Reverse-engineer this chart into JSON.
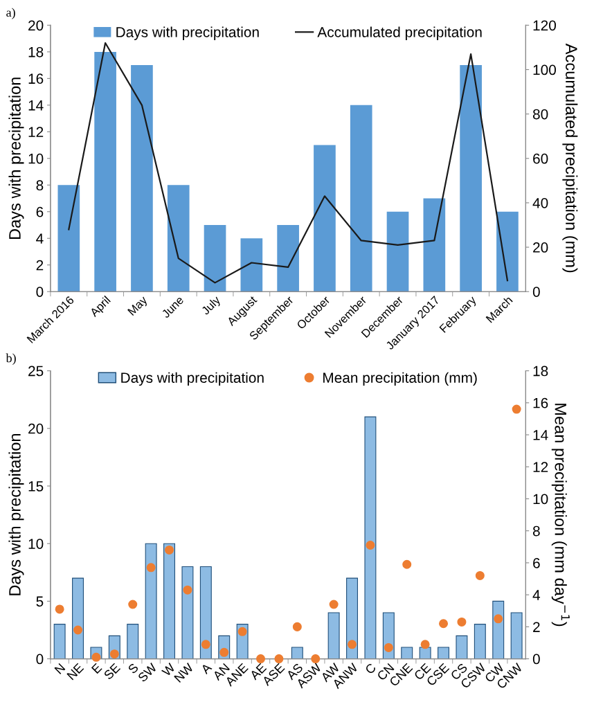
{
  "chart_data": [
    {
      "type": "bar",
      "annotations": [
        "a)"
      ],
      "ylabel": "Days with precipitation",
      "y2label": "Accumulated precipitation (mm)",
      "categories": [
        "March 2016",
        "April",
        "May",
        "June",
        "July",
        "August",
        "September",
        "October",
        "November",
        "December",
        "January 2017",
        "February",
        "March"
      ],
      "series": [
        {
          "name": "Days with precipitation",
          "color": "#5b9bd5",
          "values": [
            8,
            18,
            17,
            8,
            5,
            4,
            5,
            11,
            14,
            6,
            7,
            17,
            6
          ]
        },
        {
          "name": "Accumulated precipitation",
          "type": "line",
          "axis": "y2",
          "color": "#1a1a1a",
          "values": [
            28,
            112,
            84,
            15,
            4,
            13,
            11,
            43,
            23,
            21,
            23,
            107,
            5
          ]
        }
      ],
      "ylim": [
        0,
        20
      ],
      "yticks": [
        0,
        2,
        4,
        6,
        8,
        10,
        12,
        14,
        16,
        18,
        20
      ],
      "y2lim": [
        0,
        120
      ],
      "y2ticks": [
        0,
        20,
        40,
        60,
        80,
        100,
        120
      ],
      "legend": "top",
      "grid": false,
      "marker": "none",
      "line_style": "solid"
    },
    {
      "type": "bar",
      "annotations": [
        "b)"
      ],
      "ylabel": "Days with precipitation",
      "y2label": "Mean precipitation (mm day$^{−1}$)",
      "categories": [
        "N",
        "NE",
        "E",
        "SE",
        "S",
        "SW",
        "W",
        "NW",
        "A",
        "AN",
        "ANE",
        "AE",
        "ASE",
        "AS",
        "ASW",
        "AW",
        "ANW",
        "C",
        "CN",
        "CNE",
        "CE",
        "CSE",
        "CS",
        "CSW",
        "CW",
        "CNW"
      ],
      "series": [
        {
          "name": "Days with precipitation",
          "color": "#8dbbe3",
          "values": [
            3,
            7,
            1,
            2,
            3,
            10,
            10,
            8,
            8,
            2,
            3,
            0,
            0,
            1,
            0,
            4,
            7,
            21,
            4,
            1,
            1,
            1,
            2,
            3,
            5,
            4
          ]
        },
        {
          "name": "Mean precipitation (mm)",
          "type": "scatter",
          "axis": "y2",
          "color": "#ed7d31",
          "values": [
            3.1,
            1.8,
            0.1,
            0.3,
            3.4,
            5.7,
            6.8,
            4.3,
            0.9,
            0.4,
            1.7,
            0,
            0,
            2.0,
            0,
            3.4,
            0.9,
            7.1,
            0.7,
            5.9,
            0.9,
            2.2,
            2.3,
            5.2,
            2.5,
            15.6
          ]
        }
      ],
      "ylim": [
        0,
        25
      ],
      "yticks": [
        0,
        5,
        10,
        15,
        20,
        25
      ],
      "y2lim": [
        0,
        18
      ],
      "y2ticks": [
        0,
        2,
        4,
        6,
        8,
        10,
        12,
        14,
        16,
        18
      ],
      "legend": "top",
      "grid": false,
      "marker": "circle"
    }
  ]
}
